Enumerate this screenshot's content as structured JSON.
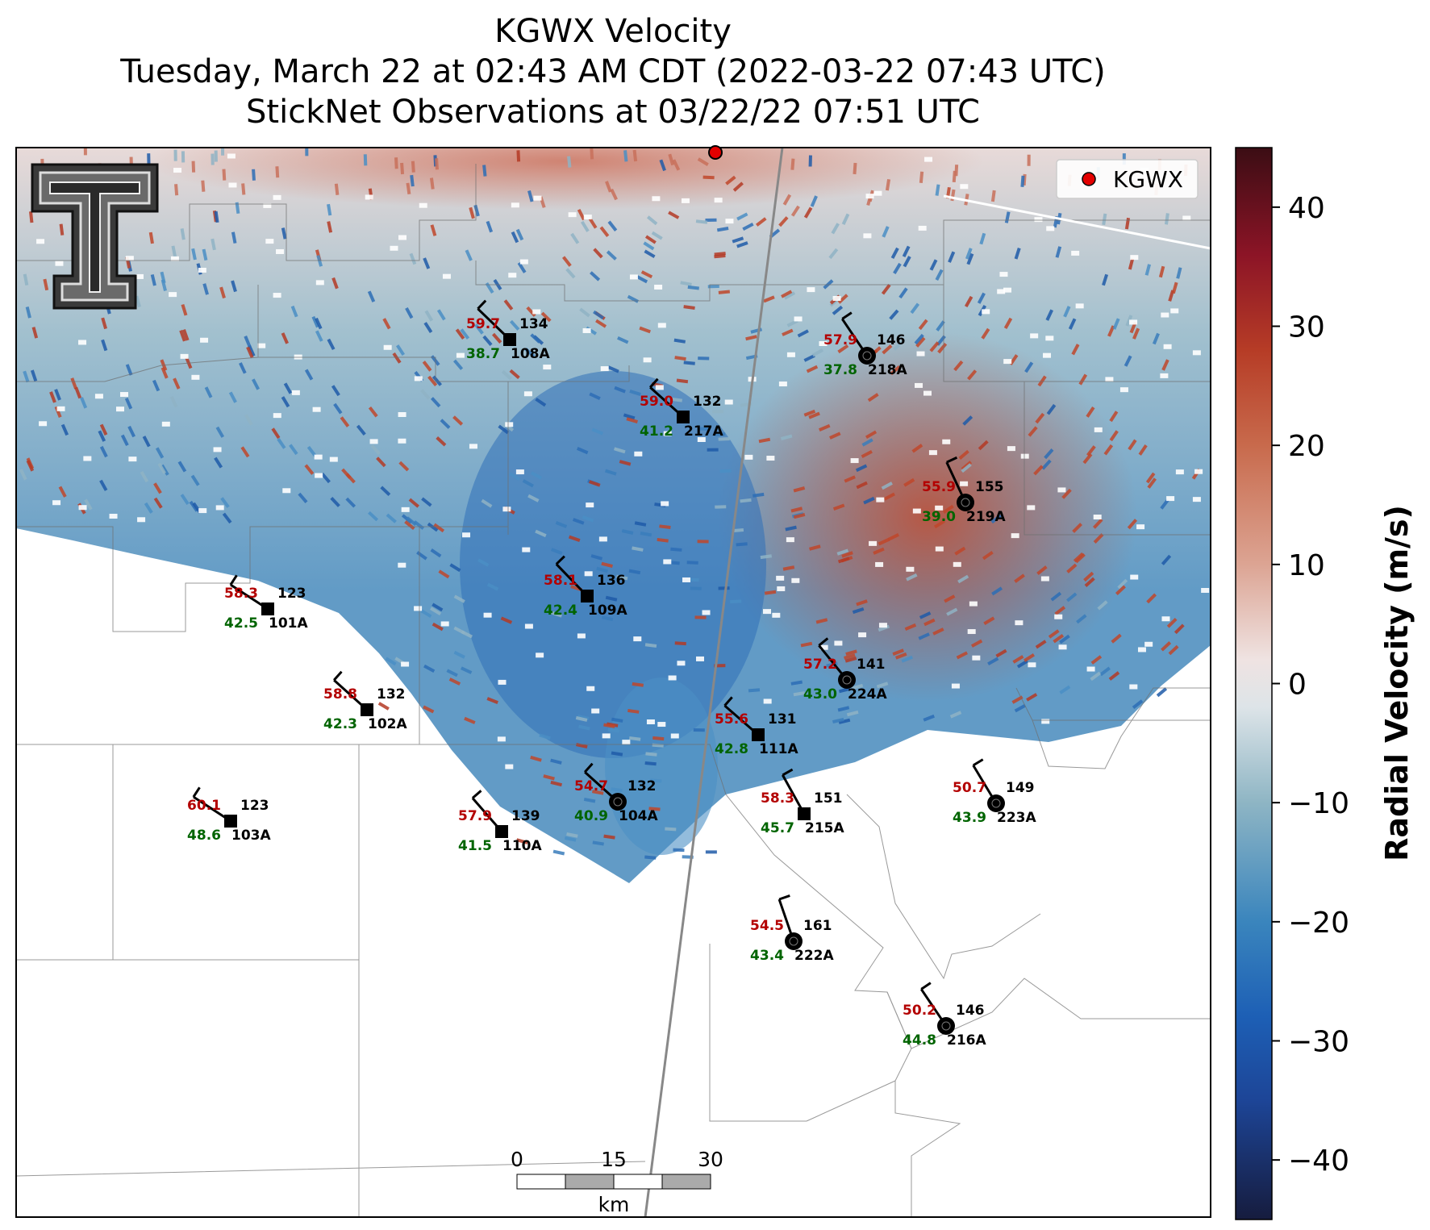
{
  "title": {
    "line1": "KGWX Velocity",
    "line2": "Tuesday, March 22 at 02:43 AM CDT (2022-03-22 07:43 UTC)",
    "line3": "StickNet Observations at 03/22/22 07:51 UTC"
  },
  "legend": {
    "label": "KGWX",
    "color": "#e30000"
  },
  "logo": {
    "name": "texas-tech-double-t-logo"
  },
  "scalebar": {
    "ticks": [
      "0",
      "15",
      "30"
    ],
    "unit": "km"
  },
  "colorbar": {
    "label": "Radial Velocity (m/s)",
    "min": -45,
    "max": 45,
    "ticks": [
      {
        "value": 40,
        "label": "40"
      },
      {
        "value": 30,
        "label": "30"
      },
      {
        "value": 20,
        "label": "20"
      },
      {
        "value": 10,
        "label": "10"
      },
      {
        "value": 0,
        "label": "0"
      },
      {
        "value": -10,
        "label": "−10"
      },
      {
        "value": -20,
        "label": "−20"
      },
      {
        "value": -30,
        "label": "−30"
      },
      {
        "value": -40,
        "label": "−40"
      }
    ],
    "stops": [
      {
        "v": -45,
        "c": "#161c3e"
      },
      {
        "v": -35,
        "c": "#1d4597"
      },
      {
        "v": -28,
        "c": "#1d5fb5"
      },
      {
        "v": -20,
        "c": "#3a85bd"
      },
      {
        "v": -10,
        "c": "#8eb5c4"
      },
      {
        "v": -2,
        "c": "#dde4e8"
      },
      {
        "v": 2,
        "c": "#efe3e2"
      },
      {
        "v": 10,
        "c": "#dca493"
      },
      {
        "v": 20,
        "c": "#c86a4c"
      },
      {
        "v": 28,
        "c": "#b63c26"
      },
      {
        "v": 36,
        "c": "#8c1426"
      },
      {
        "v": 45,
        "c": "#3b0d14"
      }
    ]
  },
  "stations": [
    {
      "id": "108A",
      "temp": "59.7",
      "dew": "38.7",
      "dir": "134",
      "type": "square"
    },
    {
      "id": "218A",
      "temp": "57.9",
      "dew": "37.8",
      "dir": "146",
      "type": "circle"
    },
    {
      "id": "217A",
      "temp": "59.0",
      "dew": "41.2",
      "dir": "132",
      "type": "square"
    },
    {
      "id": "219A",
      "temp": "55.9",
      "dew": "39.0",
      "dir": "155",
      "type": "circle"
    },
    {
      "id": "101A",
      "temp": "58.3",
      "dew": "42.5",
      "dir": "123",
      "type": "square"
    },
    {
      "id": "109A",
      "temp": "58.1",
      "dew": "42.4",
      "dir": "136",
      "type": "square"
    },
    {
      "id": "224A",
      "temp": "57.2",
      "dew": "43.0",
      "dir": "141",
      "type": "circle"
    },
    {
      "id": "102A",
      "temp": "58.8",
      "dew": "42.3",
      "dir": "132",
      "type": "square"
    },
    {
      "id": "111A",
      "temp": "55.6",
      "dew": "42.8",
      "dir": "131",
      "type": "square"
    },
    {
      "id": "104A",
      "temp": "54.7",
      "dew": "40.9",
      "dir": "132",
      "type": "circle"
    },
    {
      "id": "103A",
      "temp": "60.1",
      "dew": "48.6",
      "dir": "123",
      "type": "square"
    },
    {
      "id": "110A",
      "temp": "57.9",
      "dew": "41.5",
      "dir": "139",
      "type": "square"
    },
    {
      "id": "215A",
      "temp": "58.3",
      "dew": "45.7",
      "dir": "151",
      "type": "square"
    },
    {
      "id": "223A",
      "temp": "50.7",
      "dew": "43.9",
      "dir": "149",
      "type": "circle"
    },
    {
      "id": "222A",
      "temp": "54.5",
      "dew": "43.4",
      "dir": "161",
      "type": "circle"
    },
    {
      "id": "216A",
      "temp": "50.2",
      "dew": "44.8",
      "dir": "146",
      "type": "circle"
    }
  ],
  "colors": {
    "temp": "#b30000",
    "dew": "#006400",
    "text": "#000000"
  }
}
